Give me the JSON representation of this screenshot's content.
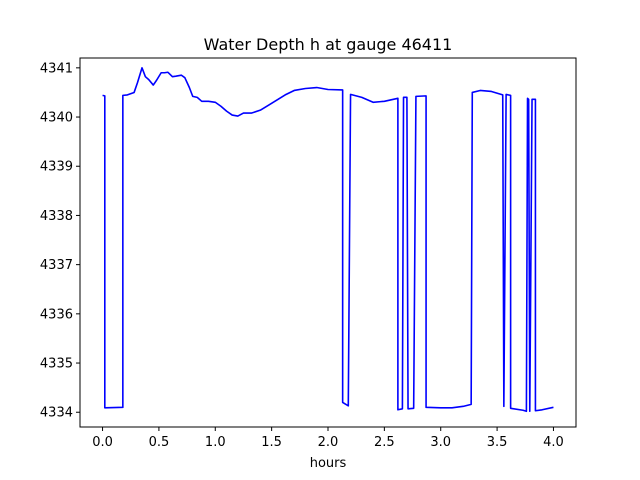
{
  "chart_data": {
    "type": "line",
    "title": "Water Depth h at gauge 46411",
    "xlabel": "hours",
    "ylabel": "",
    "xlim": [
      -0.2,
      4.2
    ],
    "ylim": [
      4333.7,
      4341.2
    ],
    "xticks": [
      0.0,
      0.5,
      1.0,
      1.5,
      2.0,
      2.5,
      3.0,
      3.5,
      4.0
    ],
    "xtick_labels": [
      "0.0",
      "0.5",
      "1.0",
      "1.5",
      "2.0",
      "2.5",
      "3.0",
      "3.5",
      "4.0"
    ],
    "yticks": [
      4334,
      4335,
      4336,
      4337,
      4338,
      4339,
      4340,
      4341
    ],
    "ytick_labels": [
      "4334",
      "4335",
      "4336",
      "4337",
      "4338",
      "4339",
      "4340",
      "4341"
    ],
    "grid": false,
    "series": [
      {
        "name": "",
        "color": "#0000ff",
        "points": [
          [
            0.0,
            4340.44
          ],
          [
            0.02,
            4340.43
          ],
          [
            0.02,
            4334.09
          ],
          [
            0.18,
            4334.1
          ],
          [
            0.18,
            4340.44
          ],
          [
            0.22,
            4340.45
          ],
          [
            0.28,
            4340.5
          ],
          [
            0.31,
            4340.7
          ],
          [
            0.35,
            4341.0
          ],
          [
            0.38,
            4340.82
          ],
          [
            0.41,
            4340.76
          ],
          [
            0.45,
            4340.65
          ],
          [
            0.48,
            4340.75
          ],
          [
            0.52,
            4340.9
          ],
          [
            0.55,
            4340.9
          ],
          [
            0.58,
            4340.91
          ],
          [
            0.62,
            4340.82
          ],
          [
            0.65,
            4340.83
          ],
          [
            0.7,
            4340.85
          ],
          [
            0.73,
            4340.8
          ],
          [
            0.77,
            4340.6
          ],
          [
            0.8,
            4340.42
          ],
          [
            0.84,
            4340.4
          ],
          [
            0.88,
            4340.32
          ],
          [
            0.94,
            4340.32
          ],
          [
            1.0,
            4340.3
          ],
          [
            1.05,
            4340.22
          ],
          [
            1.1,
            4340.12
          ],
          [
            1.15,
            4340.04
          ],
          [
            1.2,
            4340.02
          ],
          [
            1.25,
            4340.08
          ],
          [
            1.32,
            4340.08
          ],
          [
            1.4,
            4340.14
          ],
          [
            1.48,
            4340.25
          ],
          [
            1.55,
            4340.35
          ],
          [
            1.62,
            4340.45
          ],
          [
            1.7,
            4340.54
          ],
          [
            1.8,
            4340.58
          ],
          [
            1.9,
            4340.6
          ],
          [
            2.0,
            4340.56
          ],
          [
            2.13,
            4340.55
          ],
          [
            2.13,
            4334.2
          ],
          [
            2.18,
            4334.13
          ],
          [
            2.2,
            4340.46
          ],
          [
            2.3,
            4340.4
          ],
          [
            2.4,
            4340.3
          ],
          [
            2.5,
            4340.32
          ],
          [
            2.62,
            4340.38
          ],
          [
            2.62,
            4334.05
          ],
          [
            2.66,
            4334.07
          ],
          [
            2.67,
            4340.4
          ],
          [
            2.7,
            4340.4
          ],
          [
            2.71,
            4334.07
          ],
          [
            2.76,
            4334.08
          ],
          [
            2.78,
            4340.42
          ],
          [
            2.87,
            4340.43
          ],
          [
            2.87,
            4334.1
          ],
          [
            3.0,
            4334.09
          ],
          [
            3.1,
            4334.09
          ],
          [
            3.2,
            4334.12
          ],
          [
            3.27,
            4334.16
          ],
          [
            3.28,
            4340.5
          ],
          [
            3.35,
            4340.54
          ],
          [
            3.45,
            4340.52
          ],
          [
            3.55,
            4340.45
          ],
          [
            3.56,
            4334.12
          ],
          [
            3.58,
            4340.46
          ],
          [
            3.62,
            4340.44
          ],
          [
            3.62,
            4334.08
          ],
          [
            3.73,
            4334.04
          ],
          [
            3.76,
            4334.02
          ],
          [
            3.77,
            4340.38
          ],
          [
            3.78,
            4340.36
          ],
          [
            3.79,
            4334.02
          ],
          [
            3.81,
            4340.36
          ],
          [
            3.84,
            4340.36
          ],
          [
            3.84,
            4334.03
          ],
          [
            3.9,
            4334.05
          ],
          [
            4.0,
            4334.1
          ]
        ]
      }
    ]
  }
}
